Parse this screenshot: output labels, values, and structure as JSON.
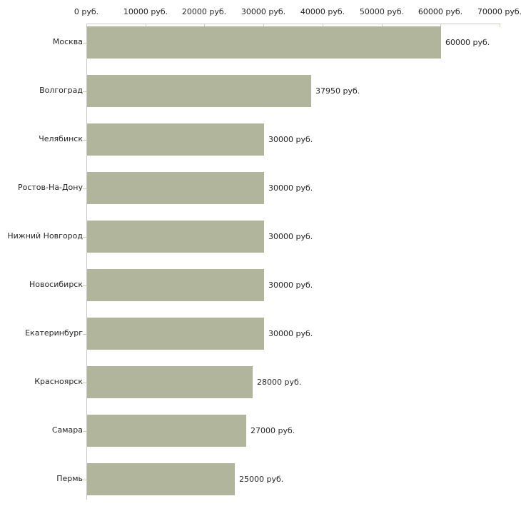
{
  "chart_data": {
    "type": "bar",
    "orientation": "horizontal",
    "title": "",
    "xlabel": "",
    "ylabel": "",
    "unit": "руб.",
    "categories": [
      "Москва",
      "Волгоград",
      "Челябинск",
      "Ростов-На-Дону",
      "Нижний Новгород",
      "Новосибирск",
      "Екатеринбург",
      "Красноярск",
      "Самара",
      "Пермь"
    ],
    "values": [
      60000,
      37950,
      30000,
      30000,
      30000,
      30000,
      30000,
      28000,
      27000,
      25000
    ],
    "value_labels": [
      "60000 руб.",
      "37950 руб.",
      "30000 руб.",
      "30000 руб.",
      "30000 руб.",
      "30000 руб.",
      "30000 руб.",
      "28000 руб.",
      "27000 руб.",
      "25000 руб."
    ],
    "x_axis": {
      "min": 0,
      "max": 70000,
      "ticks": [
        0,
        10000,
        20000,
        30000,
        40000,
        50000,
        60000,
        70000
      ],
      "tick_labels": [
        "0 руб.",
        "10000 руб.",
        "20000 руб.",
        "30000 руб.",
        "40000 руб.",
        "50000 руб.",
        "60000 руб.",
        "70000 руб."
      ]
    },
    "grid": false,
    "legend": false,
    "colors": {
      "bar": "#b0b59b",
      "axis_line": "#c9c9c9",
      "tick_mark": "#ccd1a9",
      "text": "#262626",
      "background": "#ffffff"
    }
  }
}
